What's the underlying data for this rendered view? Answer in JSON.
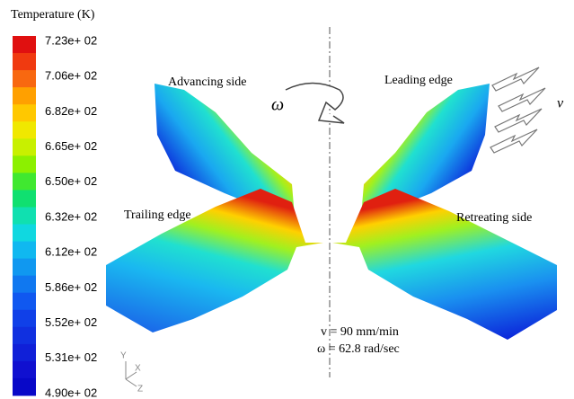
{
  "legend": {
    "title": "Temperature (K)",
    "labels": [
      "7.23e+ 02",
      "7.06e+ 02",
      "6.82e+ 02",
      "6.65e+ 02",
      "6.50e+ 02",
      "6.32e+ 02",
      "6.12e+ 02",
      "5.86e+ 02",
      "5.52e+ 02",
      "5.31e+ 02",
      "4.90e+ 02"
    ]
  },
  "annotations": {
    "advancing": "Advancing side",
    "leading": "Leading edge",
    "trailing": "Trailing edge",
    "retreating": "Retreating side",
    "omega": "ω",
    "velocity": "v",
    "speed": "v = 90 mm/min",
    "rotation": "ω = 62.8 rad/sec"
  },
  "triad": {
    "y": "Y",
    "x": "X",
    "z": "Z"
  }
}
